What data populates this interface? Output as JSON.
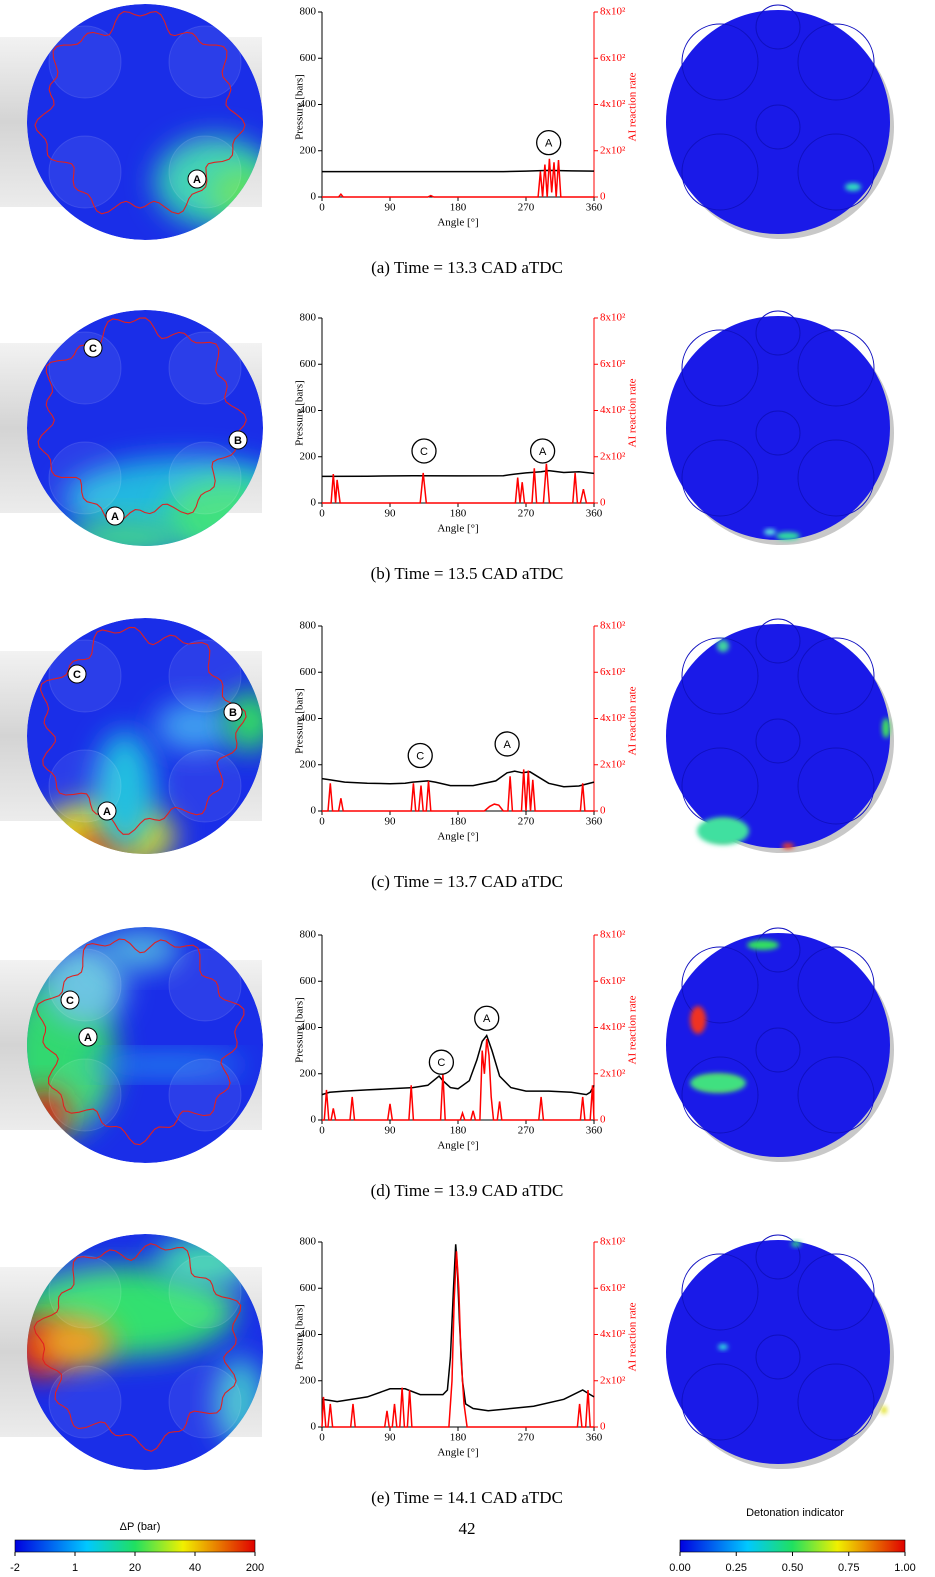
{
  "chart_data": [
    {
      "type": "line",
      "xlabel": "Angle [°]",
      "ylabel": "Pressure [bars]",
      "y2label": "AI reaction rate",
      "xlim": [
        0,
        360
      ],
      "xticks": [
        0,
        90,
        180,
        270,
        360
      ],
      "ylim": [
        0,
        800
      ],
      "yticks": [
        0,
        200,
        400,
        600,
        800
      ],
      "y2lim": [
        0,
        800
      ],
      "y2ticks": [
        0,
        {
          "value": 200,
          "label": "2x10²"
        },
        {
          "value": 400,
          "label": "4x10²"
        },
        {
          "value": 600,
          "label": "6x10²"
        },
        {
          "value": 800,
          "label": "8x10²"
        }
      ],
      "annotations": [
        "A"
      ],
      "series": [
        {
          "color": "#000000",
          "x": [
            0,
            60,
            120,
            180,
            240,
            270,
            300,
            330,
            360
          ],
          "values": [
            110,
            110,
            110,
            110,
            110,
            112,
            115,
            113,
            112
          ]
        },
        {
          "color": "#ff0000",
          "axis": "y2",
          "x": [
            0,
            22,
            25,
            28,
            140,
            144,
            148,
            286,
            289,
            292,
            295,
            298,
            301,
            304,
            307,
            310,
            313,
            316,
            319,
            360
          ],
          "values": [
            0,
            0,
            12,
            0,
            0,
            6,
            0,
            0,
            110,
            0,
            140,
            0,
            165,
            20,
            150,
            0,
            160,
            0,
            0,
            0
          ]
        }
      ]
    },
    {
      "type": "line",
      "xlabel": "Angle [°]",
      "ylabel": "Pressure [bars]",
      "y2label": "AI reaction rate",
      "xlim": [
        0,
        360
      ],
      "xticks": [
        0,
        90,
        180,
        270,
        360
      ],
      "ylim": [
        0,
        800
      ],
      "yticks": [
        0,
        200,
        400,
        600,
        800
      ],
      "y2lim": [
        0,
        800
      ],
      "y2ticks": [
        0,
        {
          "value": 200,
          "label": "2x10²"
        },
        {
          "value": 400,
          "label": "4x10²"
        },
        {
          "value": 600,
          "label": "6x10²"
        },
        {
          "value": 800,
          "label": "8x10²"
        }
      ],
      "annotations": [
        "C",
        "A"
      ],
      "series": [
        {
          "color": "#000000",
          "x": [
            0,
            60,
            120,
            180,
            240,
            255,
            270,
            290,
            300,
            320,
            340,
            360
          ],
          "values": [
            115,
            116,
            118,
            117,
            118,
            125,
            130,
            135,
            140,
            132,
            135,
            128
          ]
        },
        {
          "color": "#ff0000",
          "axis": "y2",
          "x": [
            0,
            12,
            15,
            18,
            20,
            24,
            130,
            134,
            138,
            256,
            259,
            262,
            265,
            268,
            278,
            281,
            284,
            293,
            297,
            301,
            332,
            335,
            338,
            342,
            346,
            350,
            360
          ],
          "values": [
            0,
            0,
            125,
            0,
            100,
            0,
            0,
            130,
            0,
            0,
            110,
            0,
            90,
            0,
            0,
            150,
            0,
            0,
            170,
            0,
            0,
            130,
            0,
            0,
            60,
            0,
            0
          ]
        }
      ]
    },
    {
      "type": "line",
      "xlabel": "Angle [°]",
      "ylabel": "Pressure [bars]",
      "y2label": "AI reaction rate",
      "xlim": [
        0,
        360
      ],
      "xticks": [
        0,
        90,
        180,
        270,
        360
      ],
      "ylim": [
        0,
        800
      ],
      "yticks": [
        0,
        200,
        400,
        600,
        800
      ],
      "y2lim": [
        0,
        800
      ],
      "y2ticks": [
        0,
        {
          "value": 200,
          "label": "2x10²"
        },
        {
          "value": 400,
          "label": "4x10²"
        },
        {
          "value": 600,
          "label": "6x10²"
        },
        {
          "value": 800,
          "label": "8x10²"
        }
      ],
      "annotations": [
        "C",
        "A"
      ],
      "series": [
        {
          "color": "#000000",
          "x": [
            0,
            10,
            30,
            60,
            90,
            110,
            120,
            140,
            150,
            170,
            200,
            230,
            245,
            255,
            265,
            275,
            285,
            300,
            320,
            340,
            360
          ],
          "values": [
            140,
            135,
            125,
            120,
            118,
            120,
            125,
            130,
            125,
            110,
            110,
            130,
            165,
            172,
            165,
            170,
            150,
            120,
            105,
            108,
            125
          ]
        },
        {
          "color": "#ff0000",
          "axis": "y2",
          "x": [
            0,
            8,
            11,
            14,
            22,
            25,
            28,
            118,
            121,
            124,
            128,
            131,
            134,
            138,
            141,
            144,
            215,
            222,
            228,
            234,
            240,
            246,
            249,
            252,
            264,
            267,
            270,
            273,
            276,
            279,
            282,
            342,
            345,
            348,
            360
          ],
          "values": [
            0,
            0,
            120,
            0,
            0,
            55,
            0,
            0,
            120,
            0,
            0,
            110,
            0,
            0,
            130,
            0,
            0,
            20,
            30,
            25,
            0,
            0,
            150,
            0,
            0,
            180,
            0,
            175,
            0,
            135,
            0,
            0,
            120,
            0,
            0
          ]
        }
      ]
    },
    {
      "type": "line",
      "xlabel": "Angle [°]",
      "ylabel": "Pressure [bars]",
      "y2label": "AI reaction rate",
      "xlim": [
        0,
        360
      ],
      "xticks": [
        0,
        90,
        180,
        270,
        360
      ],
      "ylim": [
        0,
        800
      ],
      "yticks": [
        0,
        200,
        400,
        600,
        800
      ],
      "y2lim": [
        0,
        800
      ],
      "y2ticks": [
        0,
        {
          "value": 200,
          "label": "2x10²"
        },
        {
          "value": 400,
          "label": "4x10²"
        },
        {
          "value": 600,
          "label": "6x10²"
        },
        {
          "value": 800,
          "label": "8x10²"
        }
      ],
      "annotations": [
        "C",
        "A"
      ],
      "series": [
        {
          "color": "#000000",
          "x": [
            0,
            10,
            30,
            60,
            90,
            120,
            140,
            155,
            160,
            170,
            180,
            195,
            205,
            212,
            218,
            225,
            235,
            250,
            270,
            300,
            330,
            350,
            355,
            360
          ],
          "values": [
            110,
            120,
            125,
            130,
            135,
            140,
            150,
            190,
            170,
            140,
            135,
            170,
            260,
            340,
            365,
            300,
            190,
            140,
            125,
            125,
            120,
            110,
            120,
            150
          ]
        },
        {
          "color": "#ff0000",
          "axis": "y2",
          "x": [
            0,
            3,
            6,
            9,
            12,
            15,
            18,
            37,
            40,
            43,
            87,
            90,
            93,
            115,
            118,
            121,
            157,
            160,
            163,
            183,
            186,
            189,
            197,
            200,
            203,
            209,
            212,
            215,
            218,
            221,
            224,
            227,
            232,
            235,
            238,
            287,
            290,
            293,
            342,
            345,
            348,
            355,
            358,
            360
          ],
          "values": [
            0,
            0,
            130,
            0,
            0,
            50,
            0,
            0,
            100,
            0,
            0,
            70,
            0,
            0,
            150,
            0,
            0,
            200,
            0,
            0,
            30,
            0,
            0,
            40,
            0,
            0,
            300,
            200,
            350,
            280,
            100,
            0,
            0,
            80,
            0,
            0,
            100,
            0,
            0,
            100,
            0,
            0,
            150,
            0
          ]
        }
      ]
    },
    {
      "type": "line",
      "xlabel": "Angle [°]",
      "ylabel": "Pressure [bars]",
      "y2label": "AI reaction rate",
      "xlim": [
        0,
        360
      ],
      "xticks": [
        0,
        90,
        180,
        270,
        360
      ],
      "ylim": [
        0,
        800
      ],
      "yticks": [
        0,
        200,
        400,
        600,
        800
      ],
      "y2lim": [
        0,
        800
      ],
      "y2ticks": [
        0,
        {
          "value": 200,
          "label": "2x10²"
        },
        {
          "value": 400,
          "label": "4x10²"
        },
        {
          "value": 600,
          "label": "6x10²"
        },
        {
          "value": 800,
          "label": "8x10²"
        }
      ],
      "annotations": [],
      "series": [
        {
          "color": "#000000",
          "x": [
            0,
            10,
            20,
            40,
            60,
            90,
            110,
            130,
            160,
            166,
            170,
            174,
            177,
            179,
            182,
            186,
            190,
            200,
            220,
            250,
            280,
            320,
            345,
            355,
            360
          ],
          "values": [
            120,
            115,
            110,
            120,
            130,
            165,
            165,
            140,
            140,
            160,
            300,
            600,
            790,
            700,
            450,
            200,
            100,
            80,
            70,
            80,
            90,
            120,
            160,
            140,
            130
          ]
        },
        {
          "color": "#ff0000",
          "axis": "y2",
          "x": [
            0,
            2,
            5,
            8,
            11,
            14,
            38,
            41,
            44,
            83,
            86,
            89,
            93,
            96,
            99,
            103,
            106,
            109,
            113,
            116,
            119,
            168,
            172,
            175,
            178,
            181,
            184,
            188,
            192,
            338,
            341,
            344,
            349,
            352,
            355,
            360
          ],
          "values": [
            0,
            130,
            0,
            0,
            100,
            0,
            0,
            100,
            0,
            0,
            70,
            0,
            0,
            100,
            0,
            0,
            170,
            0,
            0,
            160,
            0,
            0,
            200,
            550,
            760,
            600,
            300,
            100,
            0,
            0,
            100,
            0,
            0,
            160,
            0,
            0
          ]
        }
      ]
    }
  ],
  "captions": [
    "(a) Time = 13.3 CAD aTDC",
    "(b) Time = 13.5 CAD aTDC",
    "(c) Time = 13.7 CAD aTDC",
    "(d) Time = 13.9 CAD aTDC",
    "(e) Time = 14.1 CAD aTDC"
  ],
  "image_labels": [
    [
      "A"
    ],
    [
      "C",
      "B",
      "A"
    ],
    [
      "C",
      "B",
      "A"
    ],
    [
      "C",
      "A"
    ],
    []
  ],
  "colorbars": [
    {
      "title": "ΔP (bar)",
      "ticks": [
        "-2",
        "1",
        "20",
        "40",
        "200"
      ]
    },
    {
      "title": "Detonation indicator",
      "ticks": [
        "0.00",
        "0.25",
        "0.50",
        "0.75",
        "1.00"
      ]
    }
  ],
  "page_number": "42"
}
